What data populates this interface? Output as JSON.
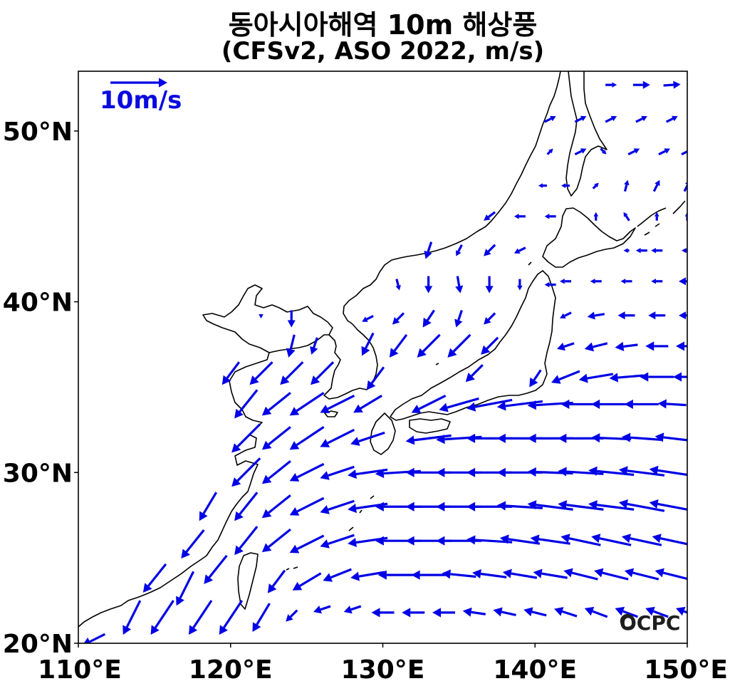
{
  "title": "동아시아해역 10m 해상풍",
  "subtitle": "(CFSv2, ASO 2022, m/s)",
  "logo": "OCPC",
  "quiver_key": {
    "label": "10m/s",
    "speed_ms": 10
  },
  "colors": {
    "vector": "#0000e6",
    "coast": "#000000",
    "frame": "#000000",
    "background": "#ffffff"
  },
  "chart_data": {
    "type": "quiver",
    "title": "동아시아해역 10m 해상풍",
    "subtitle": "(CFSv2, ASO 2022, m/s)",
    "units": "m/s",
    "lon_range": [
      110,
      150
    ],
    "lat_range": [
      20,
      53.5
    ],
    "x_ticks": [
      {
        "value": 110,
        "label": "110°E"
      },
      {
        "value": 120,
        "label": "120°E"
      },
      {
        "value": 130,
        "label": "130°E"
      },
      {
        "value": 140,
        "label": "140°E"
      },
      {
        "value": 150,
        "label": "150°E"
      }
    ],
    "y_ticks": [
      {
        "value": 20,
        "label": "20°N"
      },
      {
        "value": 30,
        "label": "30°N"
      },
      {
        "value": 40,
        "label": "40°N"
      },
      {
        "value": 50,
        "label": "50°N"
      }
    ],
    "grid": false,
    "vectors": [
      {
        "lon": 111,
        "lat": 20.2,
        "u": -4,
        "v": -2
      },
      {
        "lon": 113.5,
        "lat": 21.5,
        "u": -3,
        "v": -6
      },
      {
        "lon": 115.5,
        "lat": 21.5,
        "u": -4,
        "v": -6
      },
      {
        "lon": 117,
        "lat": 23.2,
        "u": -3,
        "v": -6
      },
      {
        "lon": 118,
        "lat": 21.5,
        "u": -4,
        "v": -6
      },
      {
        "lon": 120,
        "lat": 21.5,
        "u": -4,
        "v": -6
      },
      {
        "lon": 122,
        "lat": 21.5,
        "u": -3,
        "v": -5
      },
      {
        "lon": 124,
        "lat": 21.6,
        "u": -2,
        "v": -2
      },
      {
        "lon": 126,
        "lat": 22,
        "u": -3,
        "v": -1
      },
      {
        "lon": 128,
        "lat": 22,
        "u": -3,
        "v": -1
      },
      {
        "lon": 130,
        "lat": 21.8,
        "u": -4,
        "v": 0
      },
      {
        "lon": 132,
        "lat": 21.8,
        "u": -4,
        "v": 0
      },
      {
        "lon": 134,
        "lat": 21.8,
        "u": -4,
        "v": 0
      },
      {
        "lon": 136,
        "lat": 21.8,
        "u": -4,
        "v": 0.6
      },
      {
        "lon": 138,
        "lat": 21.8,
        "u": -4,
        "v": 0.9
      },
      {
        "lon": 140,
        "lat": 21.8,
        "u": -4,
        "v": 1
      },
      {
        "lon": 142,
        "lat": 21.8,
        "u": -4,
        "v": 1.3
      },
      {
        "lon": 144,
        "lat": 21.8,
        "u": -4,
        "v": 1.5
      },
      {
        "lon": 146,
        "lat": 21.8,
        "u": -4,
        "v": 1.5
      },
      {
        "lon": 148,
        "lat": 21.8,
        "u": -4,
        "v": 1.5
      },
      {
        "lon": 150,
        "lat": 21.8,
        "u": -4,
        "v": 1.5
      },
      {
        "lon": 115,
        "lat": 23.8,
        "u": -4,
        "v": -5
      },
      {
        "lon": 119,
        "lat": 24.3,
        "u": -4,
        "v": -5
      },
      {
        "lon": 123,
        "lat": 23.6,
        "u": -3,
        "v": -4
      },
      {
        "lon": 125,
        "lat": 23.6,
        "u": -5,
        "v": -3
      },
      {
        "lon": 127,
        "lat": 24,
        "u": -5,
        "v": -2
      },
      {
        "lon": 129,
        "lat": 24,
        "u": -6,
        "v": -1
      },
      {
        "lon": 131,
        "lat": 24,
        "u": -7,
        "v": 0
      },
      {
        "lon": 133,
        "lat": 24,
        "u": -6,
        "v": 0
      },
      {
        "lon": 135,
        "lat": 24,
        "u": -6,
        "v": 0.6
      },
      {
        "lon": 137,
        "lat": 24,
        "u": -6,
        "v": 0.8
      },
      {
        "lon": 139,
        "lat": 24,
        "u": -6,
        "v": 1
      },
      {
        "lon": 141,
        "lat": 24,
        "u": -6,
        "v": 1
      },
      {
        "lon": 143,
        "lat": 24,
        "u": -6,
        "v": 1.5
      },
      {
        "lon": 145,
        "lat": 24,
        "u": -6,
        "v": 1.5
      },
      {
        "lon": 147,
        "lat": 24,
        "u": -6,
        "v": 1.5
      },
      {
        "lon": 149,
        "lat": 24,
        "u": -6,
        "v": 1.5
      },
      {
        "lon": 117.5,
        "lat": 25.8,
        "u": -4,
        "v": -5
      },
      {
        "lon": 121,
        "lat": 26,
        "u": -4,
        "v": -5
      },
      {
        "lon": 123,
        "lat": 26,
        "u": -5,
        "v": -4
      },
      {
        "lon": 125,
        "lat": 25.8,
        "u": -6,
        "v": -3
      },
      {
        "lon": 127,
        "lat": 26,
        "u": -6,
        "v": -2
      },
      {
        "lon": 129,
        "lat": 26,
        "u": -7,
        "v": -1
      },
      {
        "lon": 131,
        "lat": 26,
        "u": -8,
        "v": 0
      },
      {
        "lon": 133,
        "lat": 26,
        "u": -8,
        "v": 0
      },
      {
        "lon": 135,
        "lat": 26,
        "u": -8,
        "v": 0
      },
      {
        "lon": 137,
        "lat": 26,
        "u": -8,
        "v": 0.5
      },
      {
        "lon": 139,
        "lat": 26,
        "u": -7,
        "v": 1
      },
      {
        "lon": 141,
        "lat": 26,
        "u": -7,
        "v": 1
      },
      {
        "lon": 143,
        "lat": 26,
        "u": -7,
        "v": 1.5
      },
      {
        "lon": 145,
        "lat": 26,
        "u": -7,
        "v": 1.5
      },
      {
        "lon": 147,
        "lat": 26,
        "u": -7,
        "v": 1.5
      },
      {
        "lon": 149,
        "lat": 26,
        "u": -7,
        "v": 1.5
      },
      {
        "lon": 118.5,
        "lat": 28,
        "u": -3,
        "v": -5
      },
      {
        "lon": 121,
        "lat": 28,
        "u": -4,
        "v": -5
      },
      {
        "lon": 123,
        "lat": 28,
        "u": -5,
        "v": -4
      },
      {
        "lon": 125,
        "lat": 28,
        "u": -6,
        "v": -3
      },
      {
        "lon": 127,
        "lat": 28,
        "u": -6,
        "v": -2
      },
      {
        "lon": 129,
        "lat": 28,
        "u": -7,
        "v": -1
      },
      {
        "lon": 131,
        "lat": 28,
        "u": -8,
        "v": 0
      },
      {
        "lon": 133,
        "lat": 28,
        "u": -8,
        "v": 0
      },
      {
        "lon": 135,
        "lat": 28,
        "u": -8,
        "v": 0
      },
      {
        "lon": 137,
        "lat": 28,
        "u": -8,
        "v": 0
      },
      {
        "lon": 139,
        "lat": 28,
        "u": -8,
        "v": 0.5
      },
      {
        "lon": 141,
        "lat": 28,
        "u": -8,
        "v": 1
      },
      {
        "lon": 143,
        "lat": 28,
        "u": -8,
        "v": 1
      },
      {
        "lon": 145,
        "lat": 28,
        "u": -8,
        "v": 1
      },
      {
        "lon": 147,
        "lat": 28,
        "u": -8,
        "v": 1.5
      },
      {
        "lon": 149,
        "lat": 28,
        "u": -8,
        "v": 1.5
      },
      {
        "lon": 121,
        "lat": 30,
        "u": -5,
        "v": -5
      },
      {
        "lon": 123,
        "lat": 30,
        "u": -5,
        "v": -4
      },
      {
        "lon": 125,
        "lat": 30,
        "u": -6,
        "v": -3
      },
      {
        "lon": 127,
        "lat": 30,
        "u": -6,
        "v": -2
      },
      {
        "lon": 129,
        "lat": 30,
        "u": -7,
        "v": -1
      },
      {
        "lon": 131,
        "lat": 30,
        "u": -8,
        "v": -0.5
      },
      {
        "lon": 133,
        "lat": 30,
        "u": -8,
        "v": 0
      },
      {
        "lon": 135,
        "lat": 30,
        "u": -8,
        "v": 0
      },
      {
        "lon": 137,
        "lat": 30,
        "u": -8,
        "v": 0
      },
      {
        "lon": 139,
        "lat": 30,
        "u": -8,
        "v": 0
      },
      {
        "lon": 141,
        "lat": 30,
        "u": -8,
        "v": 0.3
      },
      {
        "lon": 143,
        "lat": 30,
        "u": -8,
        "v": 0.5
      },
      {
        "lon": 145,
        "lat": 30,
        "u": -8,
        "v": 0.8
      },
      {
        "lon": 147,
        "lat": 30,
        "u": -8,
        "v": 1
      },
      {
        "lon": 149,
        "lat": 30,
        "u": -8,
        "v": 1.2
      },
      {
        "lon": 121,
        "lat": 32,
        "u": -5,
        "v": -5
      },
      {
        "lon": 123,
        "lat": 32,
        "u": -5,
        "v": -4
      },
      {
        "lon": 125,
        "lat": 32,
        "u": -6,
        "v": -4
      },
      {
        "lon": 127,
        "lat": 32,
        "u": -6,
        "v": -3
      },
      {
        "lon": 129,
        "lat": 32,
        "u": -6,
        "v": -2
      },
      {
        "lon": 133,
        "lat": 32,
        "u": -8,
        "v": -1
      },
      {
        "lon": 135,
        "lat": 32,
        "u": -8,
        "v": -0.5
      },
      {
        "lon": 137,
        "lat": 32,
        "u": -8,
        "v": 0
      },
      {
        "lon": 139,
        "lat": 32,
        "u": -8,
        "v": 0
      },
      {
        "lon": 141,
        "lat": 32,
        "u": -8,
        "v": 0
      },
      {
        "lon": 143,
        "lat": 32,
        "u": -8,
        "v": 0
      },
      {
        "lon": 145,
        "lat": 32,
        "u": -7,
        "v": 0.3
      },
      {
        "lon": 147,
        "lat": 32,
        "u": -7,
        "v": 0.5
      },
      {
        "lon": 149,
        "lat": 32,
        "u": -6,
        "v": 0.7
      },
      {
        "lon": 121,
        "lat": 34,
        "u": -4,
        "v": -5
      },
      {
        "lon": 123,
        "lat": 34,
        "u": -5,
        "v": -4
      },
      {
        "lon": 125,
        "lat": 34,
        "u": -6,
        "v": -4
      },
      {
        "lon": 127,
        "lat": 34,
        "u": -6,
        "v": -3
      },
      {
        "lon": 129,
        "lat": 34,
        "u": -5,
        "v": -3
      },
      {
        "lon": 133,
        "lat": 34,
        "u": -6,
        "v": -3
      },
      {
        "lon": 135,
        "lat": 34,
        "u": -7,
        "v": -2
      },
      {
        "lon": 137,
        "lat": 34,
        "u": -8,
        "v": -1.5
      },
      {
        "lon": 139,
        "lat": 34,
        "u": -8,
        "v": -1
      },
      {
        "lon": 141,
        "lat": 34,
        "u": -8,
        "v": -0.5
      },
      {
        "lon": 143,
        "lat": 34,
        "u": -7,
        "v": 0
      },
      {
        "lon": 145,
        "lat": 34,
        "u": -7,
        "v": 0
      },
      {
        "lon": 147,
        "lat": 34,
        "u": -6,
        "v": 0
      },
      {
        "lon": 149,
        "lat": 34,
        "u": -5,
        "v": 0.3
      },
      {
        "lon": 120,
        "lat": 35.8,
        "u": -3,
        "v": -4
      },
      {
        "lon": 122,
        "lat": 35.8,
        "u": -4,
        "v": -4
      },
      {
        "lon": 124,
        "lat": 35.8,
        "u": -4,
        "v": -4
      },
      {
        "lon": 126,
        "lat": 35.8,
        "u": -4,
        "v": -4
      },
      {
        "lon": 129.5,
        "lat": 35.5,
        "u": -3,
        "v": -4
      },
      {
        "lon": 136,
        "lat": 35.8,
        "u": -3,
        "v": -3
      },
      {
        "lon": 140,
        "lat": 35.5,
        "u": -2,
        "v": -3
      },
      {
        "lon": 142,
        "lat": 35.6,
        "u": -5,
        "v": -2
      },
      {
        "lon": 144,
        "lat": 35.6,
        "u": -6,
        "v": -1
      },
      {
        "lon": 146,
        "lat": 35.6,
        "u": -6,
        "v": -0.5
      },
      {
        "lon": 148,
        "lat": 35.6,
        "u": -6,
        "v": 0
      },
      {
        "lon": 150,
        "lat": 35.6,
        "u": -5,
        "v": 0
      },
      {
        "lon": 124,
        "lat": 37.4,
        "u": -1,
        "v": -4
      },
      {
        "lon": 125.5,
        "lat": 37.4,
        "u": -1,
        "v": -3
      },
      {
        "lon": 129,
        "lat": 37.5,
        "u": -2,
        "v": -4
      },
      {
        "lon": 131,
        "lat": 37.4,
        "u": -3,
        "v": -4
      },
      {
        "lon": 133,
        "lat": 37.4,
        "u": -4,
        "v": -4
      },
      {
        "lon": 135,
        "lat": 37.4,
        "u": -4,
        "v": -4
      },
      {
        "lon": 137,
        "lat": 37.4,
        "u": -3,
        "v": -3
      },
      {
        "lon": 142,
        "lat": 37.4,
        "u": -3,
        "v": -1
      },
      {
        "lon": 144,
        "lat": 37.4,
        "u": -4,
        "v": -1
      },
      {
        "lon": 146,
        "lat": 37.4,
        "u": -4,
        "v": -0.5
      },
      {
        "lon": 148,
        "lat": 37.4,
        "u": -4,
        "v": 0
      },
      {
        "lon": 150,
        "lat": 37.4,
        "u": -4,
        "v": 0
      },
      {
        "lon": 122,
        "lat": 39.1,
        "u": 0,
        "v": -0.5
      },
      {
        "lon": 124,
        "lat": 39,
        "u": 0,
        "v": -3
      },
      {
        "lon": 129,
        "lat": 39,
        "u": -2,
        "v": -1
      },
      {
        "lon": 131,
        "lat": 39,
        "u": -2,
        "v": -2
      },
      {
        "lon": 133,
        "lat": 39,
        "u": -2,
        "v": -3
      },
      {
        "lon": 135,
        "lat": 39,
        "u": -1,
        "v": -3
      },
      {
        "lon": 137,
        "lat": 39,
        "u": -2,
        "v": -2
      },
      {
        "lon": 142,
        "lat": 39.2,
        "u": -2,
        "v": -1
      },
      {
        "lon": 144,
        "lat": 39.2,
        "u": -3,
        "v": -0.5
      },
      {
        "lon": 146,
        "lat": 39.2,
        "u": -3,
        "v": 0
      },
      {
        "lon": 148,
        "lat": 39.2,
        "u": -3,
        "v": 0
      },
      {
        "lon": 150,
        "lat": 39.2,
        "u": -3,
        "v": 0
      },
      {
        "lon": 131,
        "lat": 41,
        "u": 0.5,
        "v": -2
      },
      {
        "lon": 133,
        "lat": 41,
        "u": 0,
        "v": -3
      },
      {
        "lon": 135,
        "lat": 41,
        "u": 0.5,
        "v": -3
      },
      {
        "lon": 137,
        "lat": 41,
        "u": 0,
        "v": -3
      },
      {
        "lon": 139,
        "lat": 41,
        "u": 0,
        "v": -2
      },
      {
        "lon": 141,
        "lat": 41,
        "u": -2,
        "v": 0
      },
      {
        "lon": 142,
        "lat": 41.2,
        "u": -2,
        "v": 0
      },
      {
        "lon": 144,
        "lat": 41.2,
        "u": -2,
        "v": 0
      },
      {
        "lon": 146,
        "lat": 41.2,
        "u": -2,
        "v": 0
      },
      {
        "lon": 148,
        "lat": 41.2,
        "u": -2,
        "v": 0
      },
      {
        "lon": 150,
        "lat": 41.2,
        "u": -3,
        "v": 0
      },
      {
        "lon": 133,
        "lat": 43,
        "u": -1,
        "v": -3
      },
      {
        "lon": 135,
        "lat": 43,
        "u": -1,
        "v": -2
      },
      {
        "lon": 137,
        "lat": 43,
        "u": -2,
        "v": -2
      },
      {
        "lon": 139,
        "lat": 43,
        "u": -2,
        "v": -1
      },
      {
        "lon": 146,
        "lat": 43,
        "u": -1,
        "v": 0
      },
      {
        "lon": 147,
        "lat": 43,
        "u": -2,
        "v": 0
      },
      {
        "lon": 148,
        "lat": 43,
        "u": -2,
        "v": 0
      },
      {
        "lon": 150,
        "lat": 43,
        "u": -2,
        "v": 0
      },
      {
        "lon": 137,
        "lat": 45,
        "u": -2,
        "v": -1.5
      },
      {
        "lon": 139,
        "lat": 45,
        "u": -2,
        "v": 0
      },
      {
        "lon": 141,
        "lat": 45,
        "u": -2,
        "v": 0
      },
      {
        "lon": 144,
        "lat": 45,
        "u": 0,
        "v": 1.5
      },
      {
        "lon": 146,
        "lat": 45,
        "u": -1,
        "v": 1.5
      },
      {
        "lon": 148,
        "lat": 45,
        "u": 0,
        "v": 1.5
      },
      {
        "lon": 150,
        "lat": 45,
        "u": 0,
        "v": 1.5
      },
      {
        "lon": 140.5,
        "lat": 46.8,
        "u": -1.5,
        "v": 0
      },
      {
        "lon": 142,
        "lat": 46.8,
        "u": -1.5,
        "v": 0
      },
      {
        "lon": 144,
        "lat": 46.8,
        "u": 1,
        "v": 1
      },
      {
        "lon": 146,
        "lat": 46.8,
        "u": 0.5,
        "v": 2
      },
      {
        "lon": 148,
        "lat": 46.8,
        "u": 1,
        "v": 2
      },
      {
        "lon": 150,
        "lat": 46.8,
        "u": 1,
        "v": 2
      },
      {
        "lon": 141,
        "lat": 48.8,
        "u": 1,
        "v": 1
      },
      {
        "lon": 143,
        "lat": 48.8,
        "u": 2,
        "v": 1
      },
      {
        "lon": 144.5,
        "lat": 48.8,
        "u": 1,
        "v": -1
      },
      {
        "lon": 146.5,
        "lat": 48.8,
        "u": 2,
        "v": 1
      },
      {
        "lon": 148.5,
        "lat": 48.8,
        "u": 2,
        "v": 1
      },
      {
        "lon": 150,
        "lat": 48.8,
        "u": 2,
        "v": 1
      },
      {
        "lon": 141,
        "lat": 50.7,
        "u": 2,
        "v": 1
      },
      {
        "lon": 143,
        "lat": 50.7,
        "u": 2,
        "v": 1
      },
      {
        "lon": 145,
        "lat": 50.7,
        "u": 2,
        "v": 1
      },
      {
        "lon": 147,
        "lat": 50.7,
        "u": 2,
        "v": 1
      },
      {
        "lon": 149,
        "lat": 50.7,
        "u": 2,
        "v": 1
      },
      {
        "lon": 145,
        "lat": 52.7,
        "u": 2,
        "v": 0
      },
      {
        "lon": 147,
        "lat": 52.7,
        "u": 3,
        "v": 0
      },
      {
        "lon": 149,
        "lat": 52.7,
        "u": 3,
        "v": 0.2
      }
    ]
  }
}
